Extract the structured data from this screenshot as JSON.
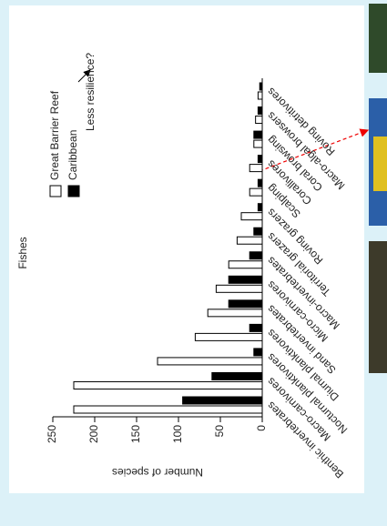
{
  "chart_data": {
    "type": "bar",
    "title": "Fishes",
    "y_label": "Number of species",
    "annotation": "Less resilience?",
    "categories": [
      "Benthic invertebrates",
      "Macro-carnivores",
      "Nocturnal planktivores",
      "Diurnal planktivores",
      "Sand invertebrates",
      "Micro-carnivores",
      "Macro-invertebrates",
      "Territorial grazers",
      "Roving grazers",
      "Scalping",
      "Corallivores",
      "Coral browsing",
      "Macro-algal browsers",
      "Roving detritivores"
    ],
    "series": [
      {
        "name": "Great Barrier Reef",
        "color": "#ffffff",
        "values": [
          225,
          225,
          125,
          80,
          65,
          55,
          40,
          30,
          25,
          15,
          15,
          10,
          8,
          5
        ]
      },
      {
        "name": "Caribbean",
        "color": "#000000",
        "values": [
          95,
          60,
          10,
          15,
          40,
          40,
          15,
          10,
          5,
          5,
          5,
          10,
          5,
          3
        ]
      }
    ],
    "ylim": [
      0,
      250
    ],
    "yticks": [
      0,
      50,
      100,
      150,
      200,
      250
    ]
  }
}
